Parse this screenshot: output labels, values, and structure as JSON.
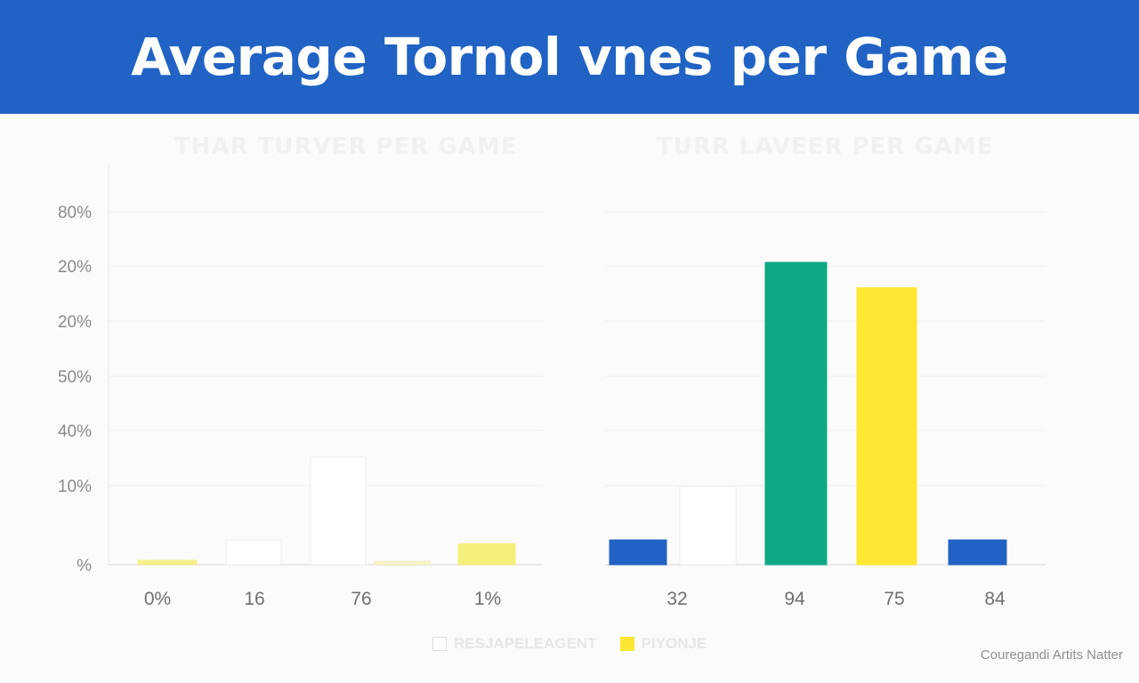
{
  "header": {
    "title": "Average Tornol vnes per Game"
  },
  "chart_data": [
    {
      "type": "bar",
      "title": "THAR TURVER PER GAME",
      "y_tick_labels": [
        "80%",
        "20%",
        "20%",
        "50%",
        "40%",
        "10%",
        "%"
      ],
      "categories": [
        "0%",
        "16",
        "76",
        "1%"
      ],
      "bars": [
        {
          "category": "0%",
          "value": 0.8,
          "color": "#f6ee8a",
          "outline": "#f6ee8a"
        },
        {
          "category": "16",
          "value": 4.5,
          "color": "#ffffff",
          "outline": "#ececec"
        },
        {
          "category": "76",
          "value": 19.5,
          "color": "#ffffff",
          "outline": "#ececec"
        },
        {
          "category": "76",
          "value": 0.6,
          "color": "#fbf6cf",
          "outline": "#eeeab0"
        },
        {
          "category": "1%",
          "value": 3.8,
          "color": "#f5f07a",
          "outline": "#f5f07a"
        }
      ],
      "grid": true
    },
    {
      "type": "bar",
      "title": "TURR LAVEER PER GAME",
      "categories": [
        "32",
        "94",
        "75",
        "84"
      ],
      "bars": [
        {
          "category": "32",
          "value": 4.5,
          "color": "#2163c4",
          "outline": "#2163c4"
        },
        {
          "category": "32",
          "value": 14.2,
          "color": "#ffffff",
          "outline": "#ececec"
        },
        {
          "category": "94",
          "value": 54.8,
          "color": "#0ea884",
          "outline": "#0ea884"
        },
        {
          "category": "75",
          "value": 50.2,
          "color": "#fde733",
          "outline": "#fde733"
        },
        {
          "category": "84",
          "value": 4.5,
          "color": "#2163c4",
          "outline": "#2163c4"
        }
      ],
      "grid": true
    }
  ],
  "legend": [
    {
      "label": "RESJAPELEAGENT",
      "color": "#ffffff",
      "outline": "#dddddd"
    },
    {
      "label": "PIYONJE",
      "color": "#fde733",
      "outline": "#fde733"
    }
  ],
  "footer": {
    "credit": "Couregandi Artits Natter"
  },
  "colors": {
    "banner": "#2163c4",
    "grid": "#efefef",
    "axis": "#e5e5e5"
  }
}
